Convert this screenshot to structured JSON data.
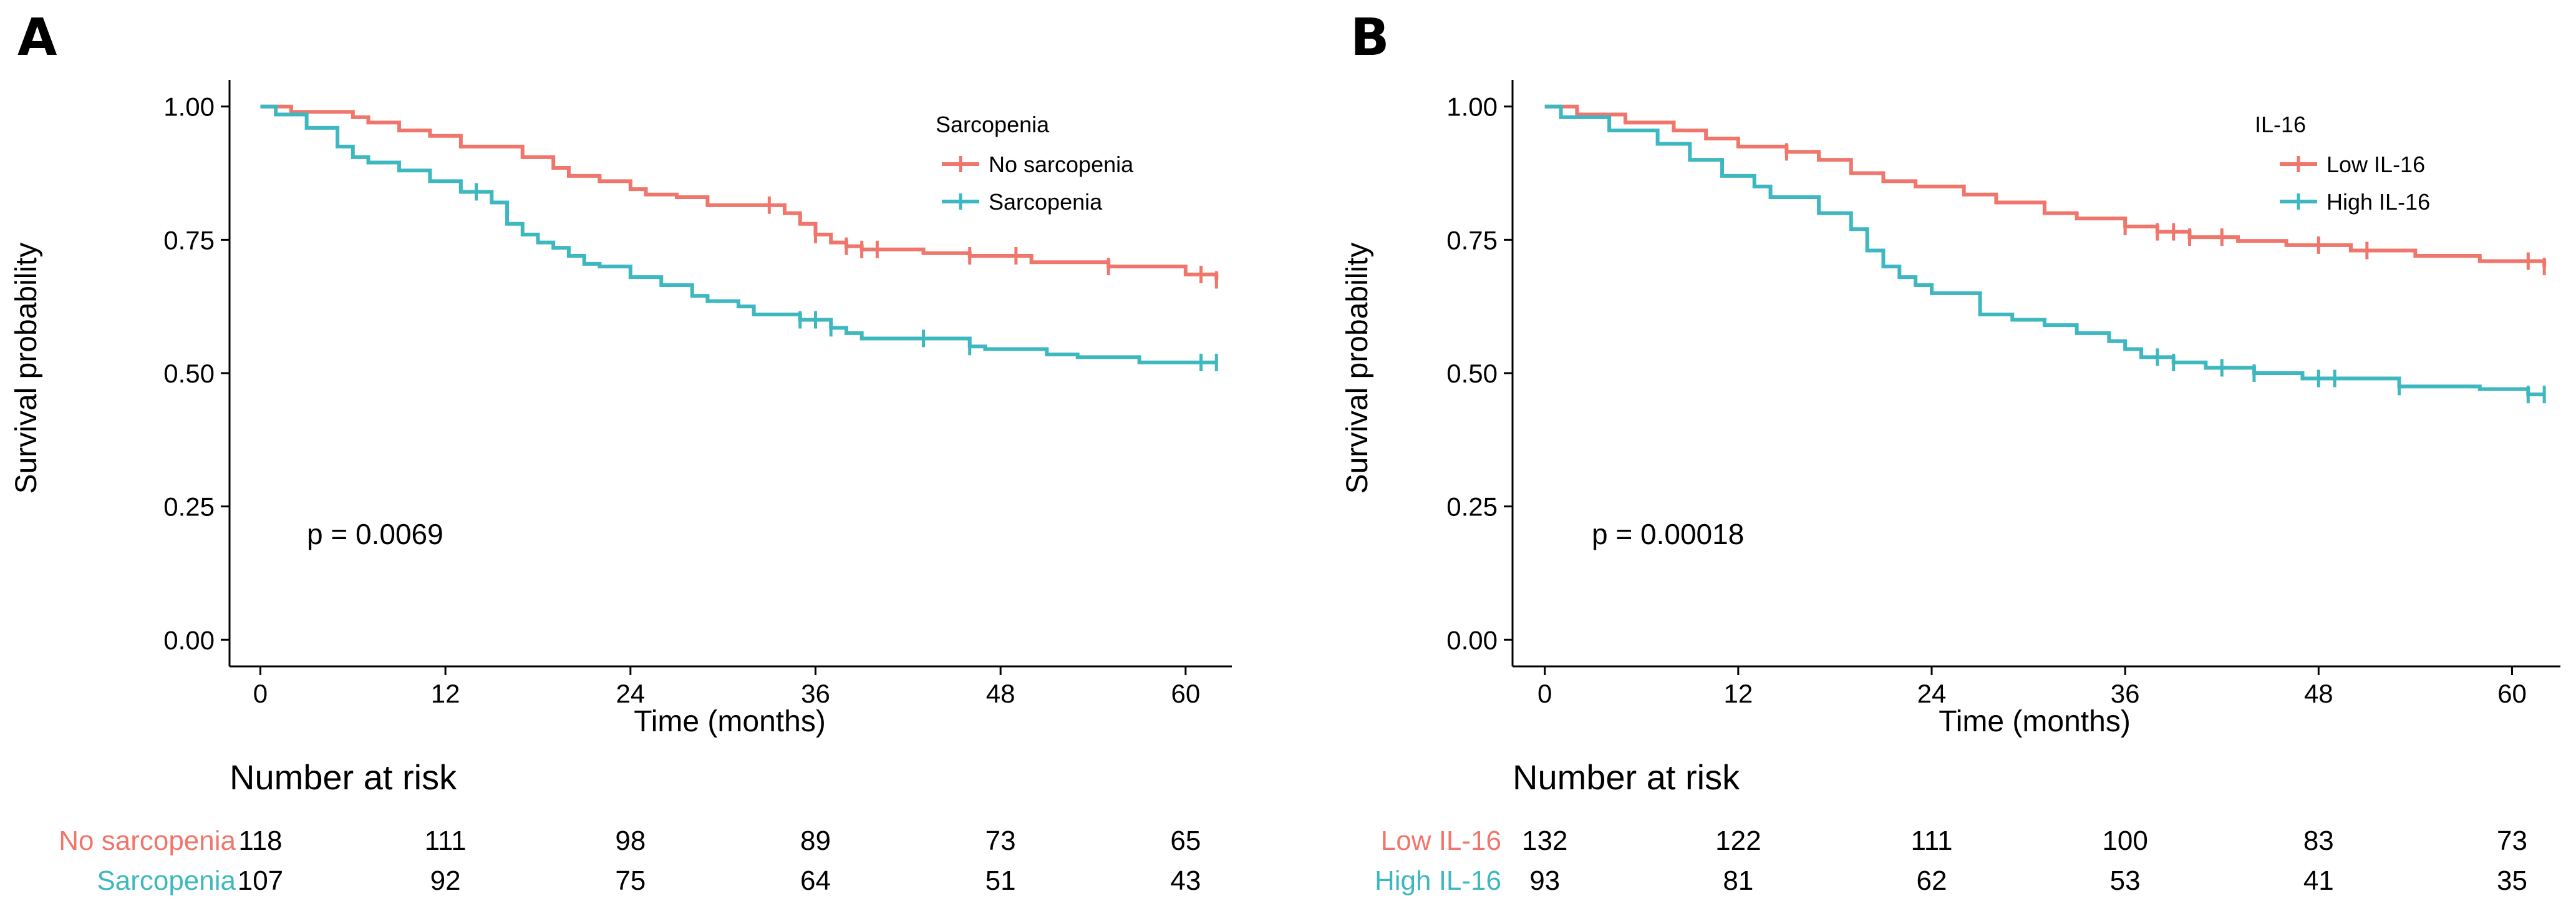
{
  "colors": {
    "group1": "#F0766B",
    "group2": "#3EB8C0",
    "axis": "#000000"
  },
  "chart_data": [
    {
      "type": "line",
      "panel": "A",
      "xlabel": "Time (months)",
      "ylabel": "Survival probability",
      "xlim": [
        -2,
        63
      ],
      "ylim": [
        -0.05,
        1.05
      ],
      "xticks": [
        0,
        12,
        24,
        36,
        48,
        60
      ],
      "yticks": [
        "0.00",
        "0.25",
        "0.50",
        "0.75",
        "1.00"
      ],
      "legend_title": "Sarcopenia",
      "pvalue": "p = 0.0069",
      "risk_title": "Number at risk",
      "series": [
        {
          "name": "No sarcopenia",
          "color": "#F0766B",
          "x": [
            0,
            2,
            6,
            7,
            9,
            11,
            13,
            17,
            19,
            20,
            22,
            24,
            25,
            27,
            29,
            34,
            35,
            36,
            37,
            38,
            39,
            43,
            46,
            50,
            55,
            60,
            62
          ],
          "y": [
            1.0,
            0.99,
            0.98,
            0.97,
            0.955,
            0.945,
            0.925,
            0.905,
            0.885,
            0.87,
            0.86,
            0.845,
            0.835,
            0.83,
            0.815,
            0.8,
            0.78,
            0.76,
            0.745,
            0.738,
            0.732,
            0.725,
            0.72,
            0.708,
            0.7,
            0.685,
            0.675
          ],
          "censor_x": [
            33,
            36,
            38,
            39,
            40,
            46,
            49,
            55,
            61,
            62
          ],
          "risk_values": [
            118,
            111,
            98,
            89,
            73,
            65
          ]
        },
        {
          "name": "Sarcopenia",
          "color": "#3EB8C0",
          "x": [
            0,
            1,
            3,
            5,
            6,
            7,
            9,
            11,
            13,
            15,
            16,
            17,
            18,
            19,
            20,
            21,
            22,
            24,
            26,
            28,
            29,
            31,
            32,
            35,
            37,
            38,
            39,
            46,
            47,
            51,
            53,
            57
          ],
          "y": [
            1.0,
            0.985,
            0.96,
            0.925,
            0.905,
            0.895,
            0.88,
            0.86,
            0.84,
            0.82,
            0.78,
            0.76,
            0.745,
            0.735,
            0.72,
            0.705,
            0.7,
            0.68,
            0.665,
            0.645,
            0.635,
            0.625,
            0.61,
            0.6,
            0.585,
            0.575,
            0.565,
            0.55,
            0.545,
            0.535,
            0.53,
            0.52
          ],
          "censor_x": [
            14,
            35,
            36,
            37,
            43,
            46,
            61,
            62
          ],
          "risk_values": [
            107,
            92,
            75,
            64,
            51,
            43
          ]
        }
      ]
    },
    {
      "type": "line",
      "panel": "B",
      "xlabel": "Time (months)",
      "ylabel": "Survival probability",
      "xlim": [
        -2,
        63
      ],
      "ylim": [
        -0.05,
        1.05
      ],
      "xticks": [
        0,
        12,
        24,
        36,
        48,
        60
      ],
      "yticks": [
        "0.00",
        "0.25",
        "0.50",
        "0.75",
        "1.00"
      ],
      "legend_title": "IL-16",
      "pvalue": "p = 0.00018",
      "risk_title": "Number at risk",
      "series": [
        {
          "name": "Low IL-16",
          "color": "#F0766B",
          "x": [
            0,
            2,
            5,
            8,
            10,
            12,
            15,
            17,
            19,
            21,
            23,
            26,
            28,
            31,
            33,
            36,
            38,
            40,
            43,
            46,
            50,
            54,
            58,
            62
          ],
          "y": [
            1.0,
            0.985,
            0.97,
            0.955,
            0.94,
            0.925,
            0.915,
            0.9,
            0.875,
            0.86,
            0.85,
            0.835,
            0.82,
            0.8,
            0.79,
            0.775,
            0.765,
            0.755,
            0.748,
            0.74,
            0.73,
            0.72,
            0.71,
            0.7
          ],
          "censor_x": [
            15,
            36,
            38,
            39,
            40,
            42,
            48,
            51,
            61,
            62
          ],
          "risk_values": [
            132,
            122,
            111,
            100,
            83,
            73
          ]
        },
        {
          "name": "High IL-16",
          "color": "#3EB8C0",
          "x": [
            0,
            1,
            4,
            7,
            9,
            11,
            13,
            14,
            17,
            19,
            20,
            21,
            22,
            23,
            24,
            27,
            29,
            31,
            33,
            35,
            36,
            37,
            39,
            41,
            44,
            47,
            53,
            58,
            61
          ],
          "y": [
            1.0,
            0.98,
            0.955,
            0.93,
            0.9,
            0.87,
            0.85,
            0.83,
            0.8,
            0.77,
            0.73,
            0.7,
            0.68,
            0.665,
            0.65,
            0.61,
            0.6,
            0.59,
            0.575,
            0.56,
            0.545,
            0.53,
            0.52,
            0.51,
            0.5,
            0.49,
            0.475,
            0.47,
            0.46
          ],
          "censor_x": [
            38,
            39,
            42,
            44,
            48,
            49,
            53,
            61,
            62
          ],
          "risk_values": [
            93,
            81,
            62,
            53,
            41,
            35
          ]
        }
      ]
    }
  ]
}
